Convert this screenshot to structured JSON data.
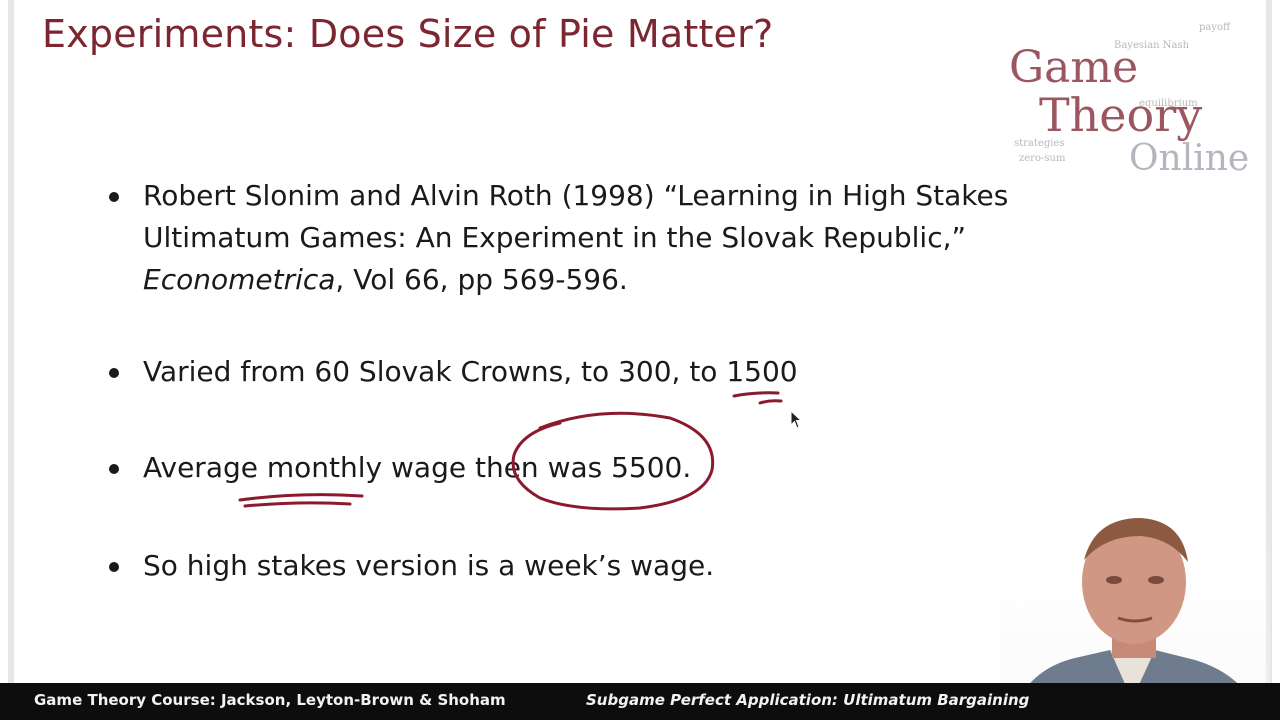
{
  "slide": {
    "title": "Experiments: Does Size of Pie Matter?",
    "logo": {
      "line1": "Game",
      "line2": "Theory",
      "line3": "Online",
      "cloud_words": [
        "Bayesian Nash",
        "equilibrium",
        "strategies",
        "zero-sum",
        "payoff"
      ]
    },
    "bullets": [
      {
        "lines": [
          "Robert Slonim and Alvin Roth (1998) “Learning in High Stakes",
          "Ultimatum Games: An Experiment in the Slovak Republic,”"
        ],
        "journal": "Econometrica",
        "journal_rest": ", Vol 66, pp 569-596."
      },
      {
        "lines": [
          "Varied from 60 Slovak Crowns, to 300, to 1500"
        ]
      },
      {
        "lines": [
          "Average monthly wage then was 5500."
        ]
      },
      {
        "lines": [
          "So high stakes version is a week’s wage."
        ]
      }
    ]
  },
  "footer": {
    "left": "Game Theory Course: Jackson, Leyton-Brown & Shoham",
    "right": "Subgame Perfect Application: Ultimatum Bargaining"
  },
  "colors": {
    "title": "#7b2630",
    "annotation": "#8b1a2e",
    "footer_bg": "#0d0d0d"
  }
}
